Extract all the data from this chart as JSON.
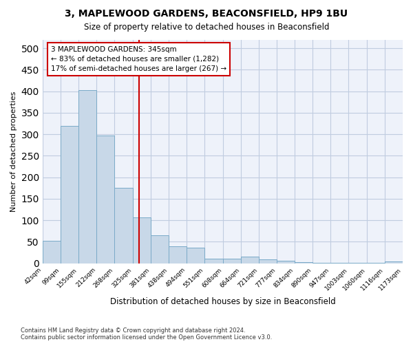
{
  "title": "3, MAPLEWOOD GARDENS, BEACONSFIELD, HP9 1BU",
  "subtitle": "Size of property relative to detached houses in Beaconsfield",
  "xlabel": "Distribution of detached houses by size in Beaconsfield",
  "ylabel": "Number of detached properties",
  "footer_line1": "Contains HM Land Registry data © Crown copyright and database right 2024.",
  "footer_line2": "Contains public sector information licensed under the Open Government Licence v3.0.",
  "annotation_title": "3 MAPLEWOOD GARDENS: 345sqm",
  "annotation_line2": "← 83% of detached houses are smaller (1,282)",
  "annotation_line3": "17% of semi-detached houses are larger (267) →",
  "bar_color": "#c8d8e8",
  "bar_edge_color": "#7aaac8",
  "vline_color": "#cc0000",
  "vline_x": 345,
  "annotation_box_color": "#cc0000",
  "ylim": [
    0,
    520
  ],
  "yticks": [
    0,
    50,
    100,
    150,
    200,
    250,
    300,
    350,
    400,
    450,
    500
  ],
  "bin_edges": [
    42,
    99,
    155,
    212,
    268,
    325,
    381,
    438,
    494,
    551,
    608,
    664,
    721,
    777,
    834,
    890,
    947,
    1003,
    1060,
    1116,
    1173
  ],
  "bar_heights": [
    53,
    320,
    403,
    297,
    176,
    107,
    65,
    40,
    36,
    10,
    10,
    15,
    9,
    6,
    3,
    1,
    1,
    1,
    1,
    5
  ],
  "background_color": "#eef2fa",
  "grid_color": "#c0cce0"
}
